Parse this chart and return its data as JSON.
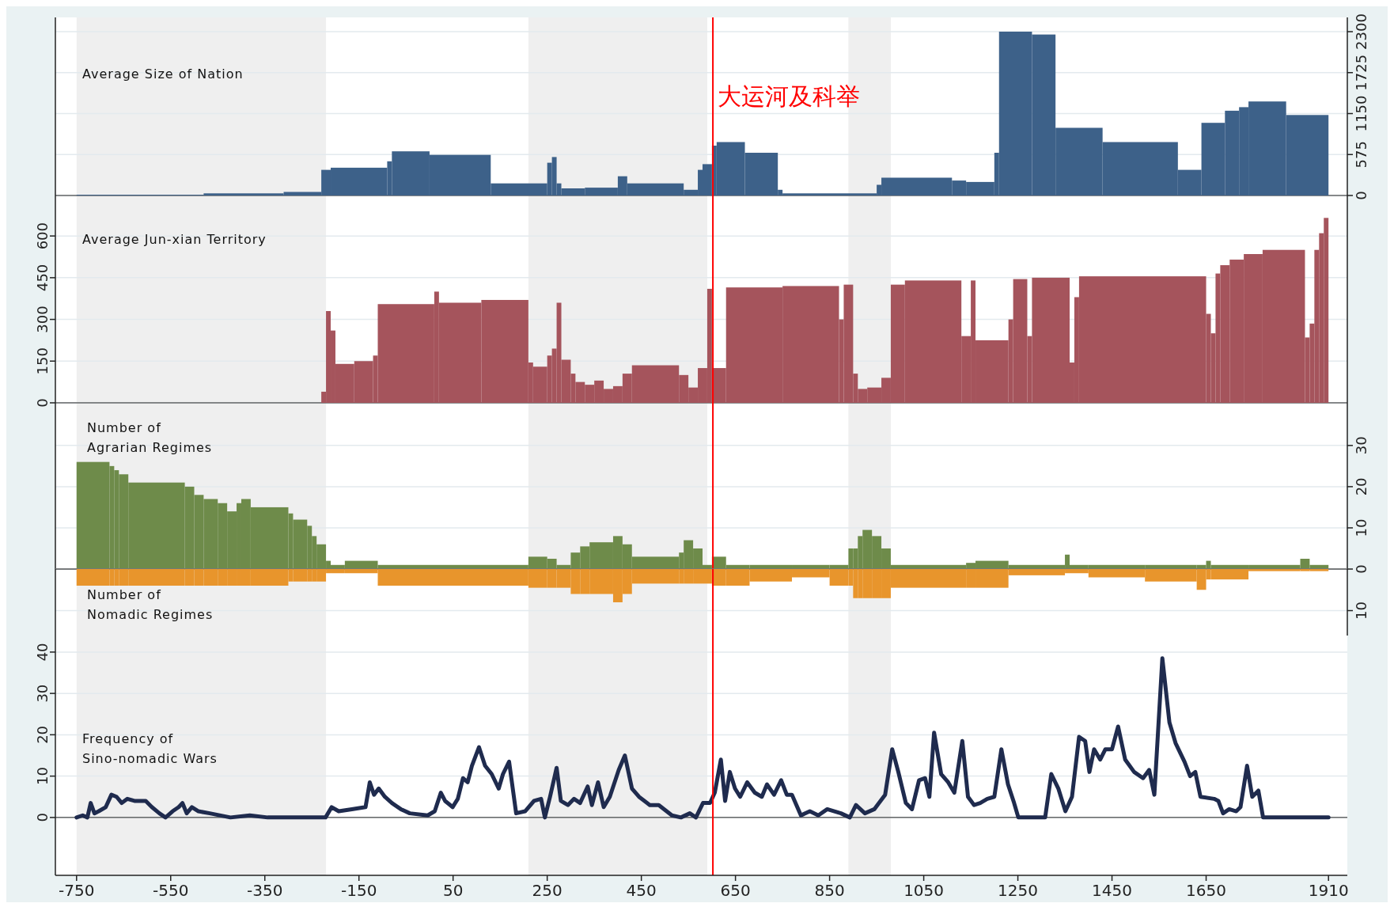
{
  "chart_data": [
    {
      "type": "histogram",
      "title": "Average Size of Nation",
      "bins": [
        -750,
        -480,
        -310,
        -230,
        -210,
        -90,
        -80,
        0,
        130,
        250,
        260,
        270,
        280,
        330,
        400,
        420,
        540,
        570,
        580,
        600,
        610,
        670,
        740,
        750,
        950,
        960,
        1110,
        1140,
        1200,
        1210,
        1280,
        1330,
        1430,
        1590,
        1640,
        1690,
        1720,
        1740,
        1820,
        1910
      ],
      "series": [
        {
          "values": [
            10,
            30,
            50,
            360,
            390,
            480,
            620,
            570,
            170,
            460,
            540,
            170,
            100,
            110,
            270,
            170,
            80,
            360,
            440,
            700,
            750,
            600,
            80,
            30,
            150,
            250,
            210,
            190,
            600,
            2300,
            2260,
            950,
            750,
            360,
            1020,
            1190,
            1240,
            1320,
            1130
          ],
          "color": "#3d6189",
          "axis": "y2"
        }
      ],
      "xlim": [
        -795,
        1950
      ],
      "y2lim": [
        -100,
        2500
      ],
      "y2ticks": [
        0,
        575,
        1150,
        1725,
        2300
      ],
      "grid": "y",
      "tick_labels": "y2",
      "bands": [
        {
          "axis": "x",
          "from": -750,
          "to": -220,
          "color": "#efefef"
        },
        {
          "axis": "x",
          "from": 210,
          "to": 590,
          "color": "#efefef"
        },
        {
          "axis": "x",
          "from": 890,
          "to": 980,
          "color": "#efefef"
        }
      ],
      "ref_lines": [
        {
          "axis": "x",
          "value": 602,
          "label": "大运河及科举",
          "color": "#ff0000"
        }
      ]
    },
    {
      "type": "histogram",
      "title": "Average Jun-xian Territory",
      "bins": [
        -230,
        -220,
        -210,
        -200,
        -160,
        -120,
        -110,
        10,
        20,
        110,
        210,
        220,
        250,
        260,
        270,
        280,
        300,
        310,
        330,
        350,
        370,
        390,
        410,
        430,
        530,
        550,
        570,
        590,
        600,
        630,
        750,
        870,
        880,
        900,
        910,
        930,
        960,
        980,
        1010,
        1130,
        1150,
        1160,
        1230,
        1240,
        1270,
        1280,
        1360,
        1370,
        1380,
        1650,
        1660,
        1670,
        1680,
        1700,
        1730,
        1770,
        1860,
        1870,
        1880,
        1890,
        1900,
        1910
      ],
      "values": [
        40,
        330,
        260,
        140,
        150,
        170,
        355,
        400,
        360,
        370,
        145,
        130,
        170,
        195,
        360,
        155,
        105,
        75,
        65,
        80,
        50,
        60,
        105,
        135,
        100,
        55,
        125,
        410,
        125,
        415,
        420,
        300,
        425,
        105,
        50,
        55,
        90,
        425,
        440,
        240,
        440,
        225,
        300,
        445,
        240,
        450,
        145,
        380,
        455,
        320,
        250,
        465,
        495,
        515,
        535,
        550,
        235,
        285,
        550,
        610,
        665
      ],
      "color": "#a5545c",
      "xlim": [
        -795,
        1950
      ],
      "ylim": [
        -20,
        720
      ],
      "yticks": [
        0,
        150,
        300,
        450,
        600
      ],
      "grid": "y",
      "tick_labels": "y",
      "bands": [
        {
          "axis": "x",
          "from": -750,
          "to": -220,
          "color": "#efefef"
        },
        {
          "axis": "x",
          "from": 210,
          "to": 590,
          "color": "#efefef"
        },
        {
          "axis": "x",
          "from": 890,
          "to": 980,
          "color": "#efefef"
        }
      ],
      "ref_lines": [
        {
          "axis": "x",
          "value": 602,
          "color": "#ff0000"
        }
      ]
    },
    {
      "type": "histogram",
      "xlim": [
        -795,
        1950
      ],
      "bins": [
        -750,
        -680,
        -670,
        -660,
        -640,
        -520,
        -500,
        -480,
        -450,
        -430,
        -410,
        -400,
        -380,
        -300,
        -290,
        -260,
        -250,
        -240,
        -220,
        -210,
        -180,
        -110,
        210,
        250,
        270,
        300,
        320,
        340,
        390,
        410,
        430,
        530,
        540,
        560,
        580,
        600,
        630,
        680,
        770,
        850,
        890,
        900,
        910,
        920,
        940,
        960,
        980,
        1140,
        1160,
        1230,
        1350,
        1360,
        1400,
        1520,
        1630,
        1650,
        1660,
        1740,
        1850,
        1870,
        1910
      ],
      "series": [
        {
          "name": "Number of Agrarian Regimes",
          "color": "#6e8b4a",
          "axis": "y2",
          "values": [
            26,
            25,
            24,
            23,
            21,
            20,
            18,
            17,
            16,
            14,
            16,
            17,
            15,
            13.5,
            12,
            10.5,
            8,
            6,
            2,
            1,
            2,
            1,
            3,
            2.5,
            1,
            4,
            5.5,
            6.5,
            8,
            6,
            3,
            4,
            7,
            5,
            1,
            3,
            1,
            1,
            1,
            1,
            5,
            5,
            8,
            9.5,
            8,
            5,
            1,
            1.5,
            2,
            1,
            3.5,
            1,
            1,
            1,
            1,
            2,
            1,
            1,
            2.5,
            1
          ]
        }
      ],
      "y2lim": [
        0,
        39
      ],
      "y2ticks": [
        10,
        20,
        30
      ],
      "grid": "y",
      "tick_labels": "y2",
      "bands": [
        {
          "axis": "x",
          "from": -750,
          "to": -220,
          "color": "#efefef"
        },
        {
          "axis": "x",
          "from": 210,
          "to": 590,
          "color": "#efefef"
        },
        {
          "axis": "x",
          "from": 890,
          "to": 980,
          "color": "#efefef"
        }
      ],
      "ref_lines": [
        {
          "axis": "x",
          "value": 602,
          "color": "#ff0000"
        }
      ]
    },
    {
      "type": "histogram",
      "xlim": [
        -795,
        1950
      ],
      "bins": [
        -750,
        -680,
        -670,
        -660,
        -640,
        -520,
        -500,
        -480,
        -450,
        -430,
        -410,
        -400,
        -380,
        -300,
        -290,
        -260,
        -250,
        -240,
        -220,
        -210,
        -180,
        -110,
        210,
        250,
        270,
        300,
        320,
        340,
        390,
        410,
        430,
        530,
        540,
        560,
        580,
        600,
        630,
        680,
        770,
        850,
        890,
        900,
        910,
        920,
        940,
        960,
        980,
        1140,
        1160,
        1230,
        1350,
        1360,
        1400,
        1520,
        1630,
        1650,
        1660,
        1740,
        1850,
        1870,
        1910
      ],
      "series": [
        {
          "name": "Number of Nomadic Regimes",
          "color": "#e8952c",
          "axis": "y2",
          "values": [
            -4,
            -4,
            -4,
            -4,
            -4,
            -4,
            -4,
            -4,
            -4,
            -4,
            -4,
            -4,
            -4,
            -3,
            -3,
            -3,
            -3,
            -3,
            -1,
            -1,
            -1,
            -4,
            -4.5,
            -4.5,
            -4.5,
            -6,
            -6,
            -6,
            -8,
            -6,
            -3.5,
            -3.5,
            -3.5,
            -3.5,
            -3.5,
            -4,
            -4,
            -3,
            -2,
            -4,
            -4,
            -7,
            -7,
            -7,
            -7,
            -7,
            -4.5,
            -4.5,
            -4.5,
            -1.5,
            -1,
            -1,
            -2,
            -3,
            -5,
            -2.5,
            -2.5,
            -0.5,
            -0.5,
            -0.5
          ]
        }
      ],
      "y2lim": [
        -16,
        0
      ],
      "y2ticks": [
        {
          "value": -10,
          "label": "10"
        },
        0
      ],
      "grid": "y",
      "tick_labels": "y2",
      "bands": [
        {
          "axis": "x",
          "from": -750,
          "to": -220,
          "color": "#efefef"
        },
        {
          "axis": "x",
          "from": 210,
          "to": 590,
          "color": "#efefef"
        },
        {
          "axis": "x",
          "from": 890,
          "to": 980,
          "color": "#efefef"
        }
      ],
      "ref_lines": [
        {
          "axis": "x",
          "value": 602,
          "color": "#ff0000"
        }
      ]
    },
    {
      "type": "line",
      "title": "Frequency of Sino-nomadic Wars",
      "color": "#1f2b4e",
      "x": [
        -750,
        -737,
        -727,
        -720,
        -712,
        -703,
        -688,
        -676,
        -665,
        -654,
        -642,
        -627,
        -603,
        -590,
        -574,
        -561,
        -546,
        -533,
        -525,
        -516,
        -505,
        -491,
        -467,
        -423,
        -382,
        -344,
        -306,
        -221,
        -208,
        -193,
        -165,
        -136,
        -127,
        -118,
        -108,
        -95,
        -80,
        -61,
        -42,
        -4,
        11,
        24,
        33,
        49,
        60,
        71,
        81,
        90,
        105,
        118,
        132,
        147,
        156,
        169,
        184,
        203,
        222,
        237,
        245,
        256,
        270,
        279,
        294,
        307,
        320,
        336,
        345,
        358,
        370,
        383,
        402,
        415,
        430,
        445,
        468,
        487,
        515,
        534,
        553,
        566,
        581,
        596,
        606,
        619,
        628,
        638,
        649,
        660,
        675,
        691,
        706,
        717,
        732,
        747,
        759,
        770,
        789,
        808,
        826,
        845,
        874,
        893,
        906,
        925,
        945,
        968,
        983,
        996,
        1012,
        1025,
        1040,
        1053,
        1062,
        1072,
        1087,
        1102,
        1115,
        1132,
        1144,
        1157,
        1170,
        1185,
        1200,
        1215,
        1229,
        1242,
        1251,
        1308,
        1321,
        1336,
        1351,
        1365,
        1380,
        1393,
        1402,
        1412,
        1425,
        1436,
        1450,
        1463,
        1478,
        1497,
        1516,
        1529,
        1540,
        1557,
        1572,
        1585,
        1604,
        1616,
        1627,
        1638,
        1667,
        1676,
        1686,
        1699,
        1714,
        1723,
        1737,
        1748,
        1761,
        1771,
        1910
      ],
      "values": [
        0,
        0.5,
        0,
        3.5,
        1,
        1.5,
        2.5,
        5.5,
        5,
        3.5,
        4.5,
        4,
        4,
        2.5,
        1,
        0,
        1.5,
        2.5,
        3.5,
        1,
        2.5,
        1.5,
        1,
        0,
        0.5,
        0,
        0,
        0,
        2.5,
        1.5,
        2,
        2.5,
        8.5,
        5.5,
        7,
        5,
        3.5,
        2,
        1,
        0.5,
        1.5,
        6,
        4,
        2.5,
        4.5,
        9.5,
        8.5,
        12.5,
        17,
        12.5,
        10.5,
        7,
        10.5,
        13.5,
        1,
        1.5,
        4,
        4.5,
        0,
        5,
        12,
        4,
        3,
        4.5,
        3.5,
        7.5,
        3,
        8.5,
        2.5,
        5,
        11.5,
        15,
        7,
        5,
        3,
        3,
        0.5,
        0,
        1,
        0,
        3.5,
        3.5,
        6,
        14,
        4,
        11,
        7,
        5,
        8.5,
        6,
        5,
        8,
        5.5,
        9,
        5.5,
        5.5,
        0.5,
        1.5,
        0.5,
        2,
        1,
        0,
        3,
        1,
        2,
        5.5,
        16.5,
        11,
        3.5,
        2,
        9,
        9.5,
        5,
        20.5,
        10.5,
        8.5,
        6,
        18.5,
        5,
        3,
        3.5,
        4.5,
        5,
        16.5,
        8,
        3.5,
        0,
        0,
        10.5,
        7,
        1.5,
        5,
        19.5,
        18.5,
        11,
        16.5,
        14,
        16.5,
        16.5,
        22,
        14,
        11,
        9.5,
        11.5,
        5.5,
        38.5,
        23,
        18,
        13.5,
        10,
        11,
        5,
        4.5,
        4,
        1,
        2,
        1.5,
        2.5,
        12.5,
        5,
        6.5,
        0,
        0
      ],
      "xlim": [
        -795,
        1950
      ],
      "xticks": [
        -750,
        -550,
        -350,
        -150,
        50,
        250,
        450,
        650,
        850,
        1050,
        1250,
        1450,
        1650,
        1910
      ],
      "ylim": [
        -14,
        44
      ],
      "yticks": [
        0,
        10,
        20,
        30,
        40
      ],
      "grid": "y",
      "bands": [
        {
          "axis": "x",
          "from": -750,
          "to": -220,
          "color": "#efefef"
        },
        {
          "axis": "x",
          "from": 210,
          "to": 590,
          "color": "#efefef"
        },
        {
          "axis": "x",
          "from": 890,
          "to": 980,
          "color": "#efefef"
        }
      ],
      "ref_lines": [
        {
          "axis": "x",
          "value": 602,
          "color": "#ff0000"
        }
      ]
    }
  ]
}
